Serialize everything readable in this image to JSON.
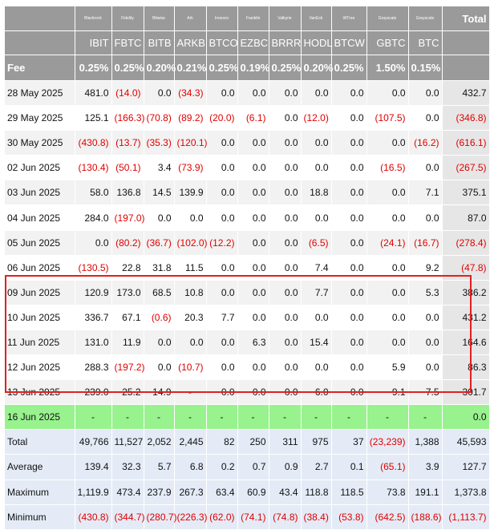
{
  "issuers": [
    "Blackrock",
    "Fidelity",
    "Bitwise",
    "Ark",
    "Invesco",
    "Franklin",
    "Valkyrie",
    "VanEck",
    "WTree",
    "Grayscale",
    "Grayscale"
  ],
  "tickers": [
    "IBIT",
    "FBTC",
    "BITB",
    "ARKB",
    "BTCO",
    "EZBC",
    "BRRR",
    "HODL",
    "BTCW",
    "GBTC",
    "BTC"
  ],
  "total_label": "Total",
  "fee_label": "Fee",
  "fees": [
    "0.25%",
    "0.25%",
    "0.20%",
    "0.21%",
    "0.25%",
    "0.19%",
    "0.25%",
    "0.20%",
    "0.25%",
    "1.50%",
    "0.15%"
  ],
  "rows": [
    {
      "date": "28 May 2025",
      "values": [
        "481.0",
        "(14.0)",
        "0.0",
        "(34.3)",
        "0.0",
        "0.0",
        "0.0",
        "0.0",
        "0.0",
        "0.0",
        "0.0"
      ],
      "total": "432.7"
    },
    {
      "date": "29 May 2025",
      "values": [
        "125.1",
        "(166.3)",
        "(70.8)",
        "(89.2)",
        "(20.0)",
        "(6.1)",
        "0.0",
        "(12.0)",
        "0.0",
        "(107.5)",
        "0.0"
      ],
      "total": "(346.8)"
    },
    {
      "date": "30 May 2025",
      "values": [
        "(430.8)",
        "(13.7)",
        "(35.3)",
        "(120.1)",
        "0.0",
        "0.0",
        "0.0",
        "0.0",
        "0.0",
        "0.0",
        "(16.2)"
      ],
      "total": "(616.1)"
    },
    {
      "date": "02 Jun 2025",
      "values": [
        "(130.4)",
        "(50.1)",
        "3.4",
        "(73.9)",
        "0.0",
        "0.0",
        "0.0",
        "0.0",
        "0.0",
        "(16.5)",
        "0.0"
      ],
      "total": "(267.5)"
    },
    {
      "date": "03 Jun 2025",
      "values": [
        "58.0",
        "136.8",
        "14.5",
        "139.9",
        "0.0",
        "0.0",
        "0.0",
        "18.8",
        "0.0",
        "0.0",
        "7.1"
      ],
      "total": "375.1"
    },
    {
      "date": "04 Jun 2025",
      "values": [
        "284.0",
        "(197.0)",
        "0.0",
        "0.0",
        "0.0",
        "0.0",
        "0.0",
        "0.0",
        "0.0",
        "0.0",
        "0.0"
      ],
      "total": "87.0"
    },
    {
      "date": "05 Jun 2025",
      "values": [
        "0.0",
        "(80.2)",
        "(36.7)",
        "(102.0)",
        "(12.2)",
        "0.0",
        "0.0",
        "(6.5)",
        "0.0",
        "(24.1)",
        "(16.7)"
      ],
      "total": "(278.4)"
    },
    {
      "date": "06 Jun 2025",
      "values": [
        "(130.5)",
        "22.8",
        "31.8",
        "11.5",
        "0.0",
        "0.0",
        "0.0",
        "7.4",
        "0.0",
        "0.0",
        "9.2"
      ],
      "total": "(47.8)"
    },
    {
      "date": "09 Jun 2025",
      "values": [
        "120.9",
        "173.0",
        "68.5",
        "10.8",
        "0.0",
        "0.0",
        "0.0",
        "7.7",
        "0.0",
        "0.0",
        "5.3"
      ],
      "total": "386.2"
    },
    {
      "date": "10 Jun 2025",
      "values": [
        "336.7",
        "67.1",
        "(0.6)",
        "20.3",
        "7.7",
        "0.0",
        "0.0",
        "0.0",
        "0.0",
        "0.0",
        "0.0"
      ],
      "total": "431.2"
    },
    {
      "date": "11 Jun 2025",
      "values": [
        "131.0",
        "11.9",
        "0.0",
        "0.0",
        "0.0",
        "6.3",
        "0.0",
        "15.4",
        "0.0",
        "0.0",
        "0.0"
      ],
      "total": "164.6"
    },
    {
      "date": "12 Jun 2025",
      "values": [
        "288.3",
        "(197.2)",
        "0.0",
        "(10.7)",
        "0.0",
        "0.0",
        "0.0",
        "0.0",
        "0.0",
        "5.9",
        "0.0"
      ],
      "total": "86.3"
    },
    {
      "date": "13 Jun 2025",
      "values": [
        "239.0",
        "25.2",
        "14.9",
        "-",
        "0.0",
        "0.0",
        "0.0",
        "6.0",
        "0.0",
        "9.1",
        "7.5"
      ],
      "total": "301.7"
    }
  ],
  "today_row": {
    "date": "16 Jun 2025",
    "values": [
      "-",
      "-",
      "-",
      "-",
      "-",
      "-",
      "-",
      "-",
      "-",
      "-",
      "-"
    ],
    "total": "0.0"
  },
  "summary_rows": [
    {
      "label": "Total",
      "values": [
        "49,766",
        "11,527",
        "2,052",
        "2,445",
        "82",
        "250",
        "311",
        "975",
        "37",
        "(23,239)",
        "1,388"
      ],
      "total": "45,593"
    },
    {
      "label": "Average",
      "values": [
        "139.4",
        "32.3",
        "5.7",
        "6.8",
        "0.2",
        "0.7",
        "0.9",
        "2.7",
        "0.1",
        "(65.1)",
        "3.9"
      ],
      "total": "127.7"
    },
    {
      "label": "Maximum",
      "values": [
        "1,119.9",
        "473.4",
        "237.9",
        "267.3",
        "63.4",
        "60.9",
        "43.4",
        "118.8",
        "118.5",
        "73.8",
        "191.1"
      ],
      "total": "1,373.8"
    },
    {
      "label": "Minimum",
      "values": [
        "(430.8)",
        "(344.7)",
        "(280.7)",
        "(226.3)",
        "(62.0)",
        "(74.1)",
        "(74.8)",
        "(38.4)",
        "(53.8)",
        "(642.5)",
        "(188.6)"
      ],
      "total": "(1,113.7)"
    }
  ],
  "colors": {
    "header_bg": "#9a9a9a",
    "negative": "#e00000",
    "highlight_border": "#e02020",
    "today_bg": "#98f28e",
    "summary_bg": "#e4ebf6"
  }
}
